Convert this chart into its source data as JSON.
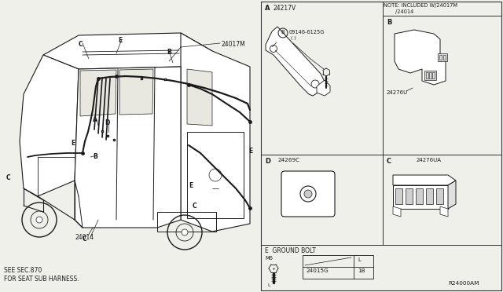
{
  "bg_color": "#f0f0eb",
  "line_color": "#1a1a1a",
  "border_color": "#333333",
  "part_numbers": {
    "main_harness": "24017M",
    "sub_harness": "24014",
    "bracket_a": "24217V",
    "bolt_a": "09146-6125G",
    "bolt_a_note": "( )",
    "bracket_b": "24276U",
    "bracket_c": "24276UA",
    "grommet_d": "24269C",
    "ground_bolt_e": "24015G",
    "ground_bolt_size": "M6",
    "ground_bolt_qty": "1B",
    "ref_num": "R24000AM"
  },
  "labels": {
    "see_sec": "SEE SEC.870",
    "for_seat": "FOR SEAT SUB HARNESS.",
    "note": "NOTE: INCLUDED W/24017M",
    "note2": "/24014",
    "ground_label": "E  GROUND BOLT",
    "ground_L": "L"
  }
}
